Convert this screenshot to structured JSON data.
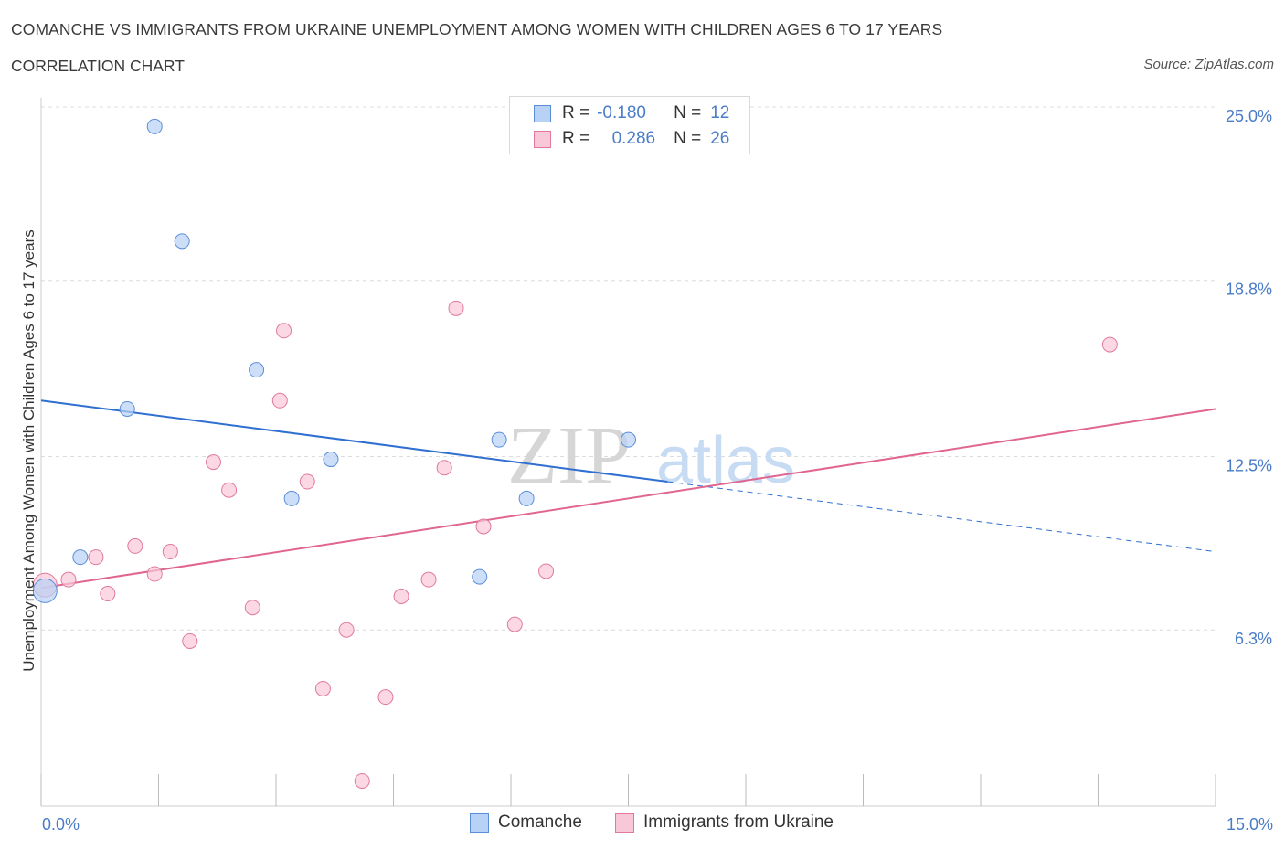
{
  "header": {
    "title": "COMANCHE VS IMMIGRANTS FROM UKRAINE UNEMPLOYMENT AMONG WOMEN WITH CHILDREN AGES 6 TO 17 YEARS",
    "subtitle": "CORRELATION CHART",
    "source": "Source: ZipAtlas.com"
  },
  "legend": {
    "rows": [
      {
        "r_label": "R =",
        "r_value": "-0.180",
        "n_label": "N =",
        "n_value": "12"
      },
      {
        "r_label": "R =",
        "r_value": "0.286",
        "n_label": "N =",
        "n_value": "26"
      }
    ]
  },
  "colors": {
    "comanche_fill": "#b8d2f5",
    "comanche_stroke": "#5b8ed8",
    "comanche_line": "#2f6fd1",
    "ukraine_fill": "#f9c8d8",
    "ukraine_stroke": "#e07a9c",
    "ukraine_line": "#e06590",
    "tick_text": "#4a7cc7",
    "grid": "#dcdcdc"
  },
  "watermark": {
    "zip": "ZIP",
    "atlas": "atlas"
  },
  "chart_data": {
    "type": "scatter",
    "xlabel": "",
    "ylabel": "Unemployment Among Women with Children Ages 6 to 17 years",
    "xlim": [
      0,
      15
    ],
    "ylim": [
      0,
      25
    ],
    "x_tick_labels": [
      "0.0%",
      "15.0%"
    ],
    "y_ticks": [
      6.3,
      12.5,
      18.8,
      25.0
    ],
    "y_tick_labels": [
      "6.3%",
      "12.5%",
      "18.8%",
      "25.0%"
    ],
    "grid": "horizontal dashed",
    "legend_position": "bottom-center",
    "series": [
      {
        "name": "Comanche",
        "points": [
          [
            0.05,
            7.7
          ],
          [
            0.5,
            8.9
          ],
          [
            1.1,
            14.2
          ],
          [
            1.45,
            24.3
          ],
          [
            1.8,
            20.2
          ],
          [
            2.75,
            15.6
          ],
          [
            3.2,
            11.0
          ],
          [
            3.7,
            12.4
          ],
          [
            5.6,
            8.2
          ],
          [
            5.85,
            13.1
          ],
          [
            6.2,
            11.0
          ],
          [
            7.5,
            13.1
          ]
        ],
        "trend": {
          "x0": 0,
          "y0": 14.5,
          "x1": 8.0,
          "y1": 11.6,
          "dashed_to_x": 15,
          "dashed_to_y": 9.1
        }
      },
      {
        "name": "Immigrants from Ukraine",
        "points": [
          [
            0.05,
            7.9
          ],
          [
            0.35,
            8.1
          ],
          [
            0.7,
            8.9
          ],
          [
            0.85,
            7.6
          ],
          [
            1.2,
            9.3
          ],
          [
            1.45,
            8.3
          ],
          [
            1.65,
            9.1
          ],
          [
            1.9,
            5.9
          ],
          [
            2.2,
            12.3
          ],
          [
            2.4,
            11.3
          ],
          [
            2.7,
            7.1
          ],
          [
            3.05,
            14.5
          ],
          [
            3.1,
            17.0
          ],
          [
            3.4,
            11.6
          ],
          [
            3.6,
            4.2
          ],
          [
            3.9,
            6.3
          ],
          [
            4.1,
            0.9
          ],
          [
            4.4,
            3.9
          ],
          [
            4.6,
            7.5
          ],
          [
            4.95,
            8.1
          ],
          [
            5.15,
            12.1
          ],
          [
            5.3,
            17.8
          ],
          [
            5.65,
            10.0
          ],
          [
            6.05,
            6.5
          ],
          [
            6.45,
            8.4
          ],
          [
            13.65,
            16.5
          ]
        ],
        "trend": {
          "x0": 0,
          "y0": 7.8,
          "x1": 15,
          "y1": 14.2
        }
      }
    ]
  }
}
